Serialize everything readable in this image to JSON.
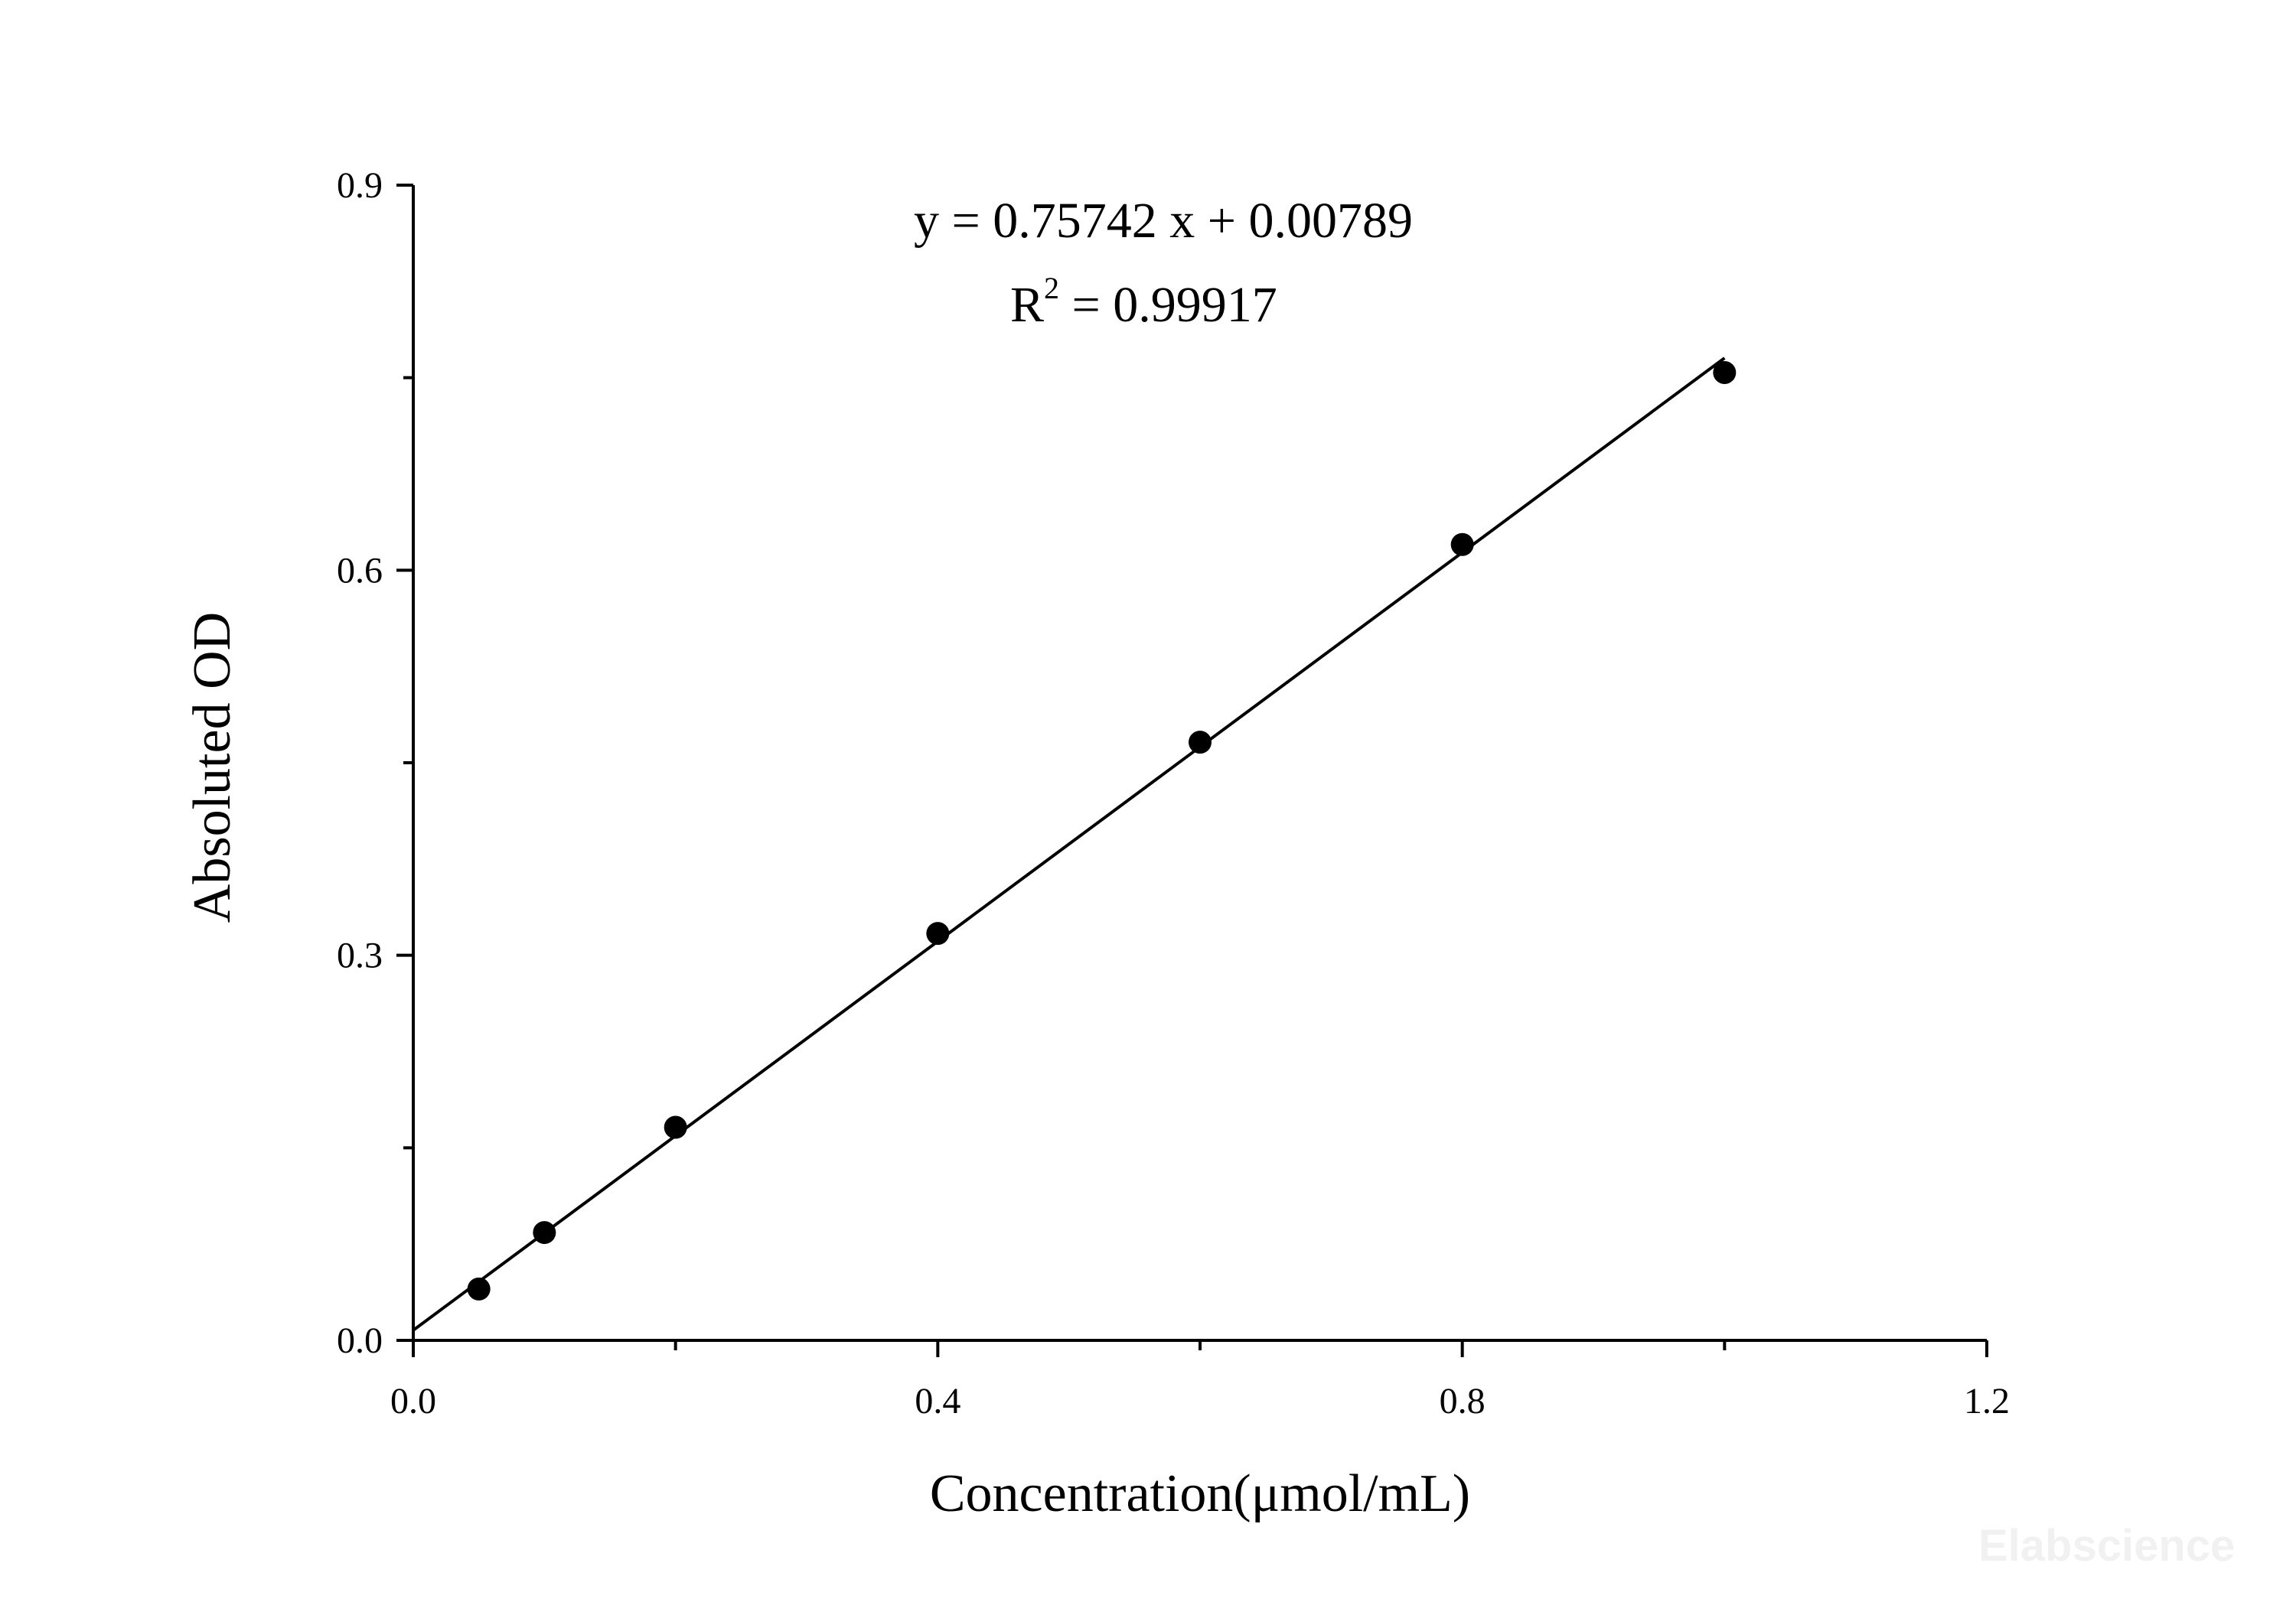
{
  "chart_data": {
    "type": "scatter",
    "xlabel": "Concentration(μmol/mL)",
    "ylabel": "Absoluted OD",
    "xlim": [
      0,
      1.2
    ],
    "ylim": [
      0,
      0.9
    ],
    "x_ticks": [
      "0.0",
      "0.4",
      "0.8",
      "1.2"
    ],
    "y_ticks": [
      "0.0",
      "0.3",
      "0.6",
      "0.9"
    ],
    "x_minor_ticks": [
      0.2,
      0.6,
      1.0
    ],
    "y_minor_ticks": [
      0.15,
      0.45,
      0.75
    ],
    "grid": false,
    "points": {
      "x": [
        0.05,
        0.1,
        0.2,
        0.4,
        0.6,
        0.8,
        1.0
      ],
      "y": [
        0.04,
        0.084,
        0.166,
        0.317,
        0.466,
        0.62,
        0.754
      ]
    },
    "fit_line": {
      "slope": 0.75742,
      "intercept": 0.00789,
      "x_range": [
        0,
        1.0
      ]
    },
    "annotations": {
      "equation": "y = 0.75742 x + 0.00789",
      "r2_label": "R",
      "r2_exponent": "2",
      "r2_value": " = 0.99917"
    },
    "watermark": "Elabscience"
  }
}
